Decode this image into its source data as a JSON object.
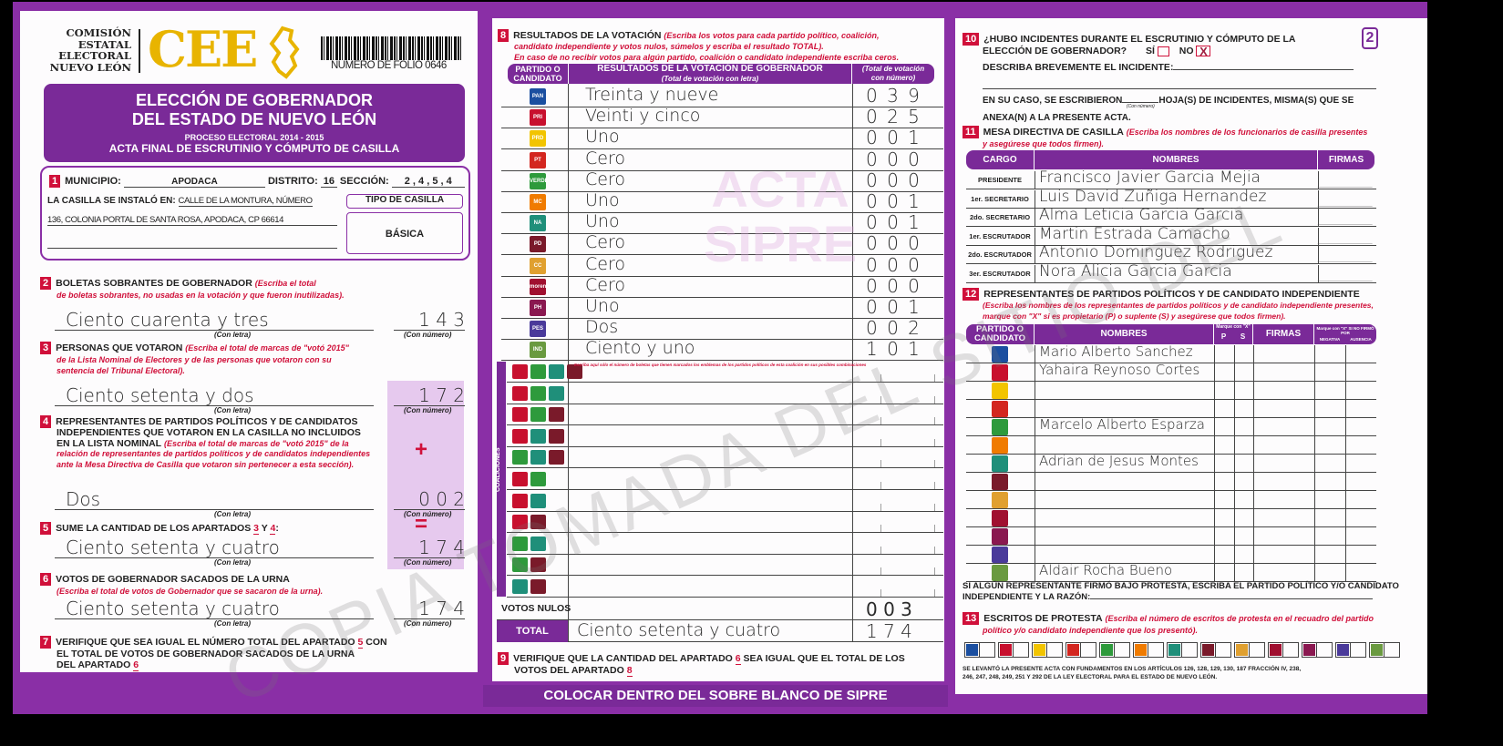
{
  "header": {
    "org_name": [
      "COMISIÓN",
      "ESTATAL",
      "ELECTORAL",
      "NUEVO LEÓN"
    ],
    "logo_text": "CEE",
    "folio": "NUMERO DE FOLIO 0646",
    "title1": "ELECCIÓN DE GOBERNADOR",
    "title2": "DEL ESTADO DE NUEVO LEÓN",
    "process": "PROCESO ELECTORAL 2014 - 2015",
    "subtitle": "ACTA FINAL DE ESCRUTINIO Y CÓMPUTO DE CASILLA",
    "page_badge": "2"
  },
  "colors": {
    "purple": "#7a2a98",
    "red": "#d0103a",
    "yellow": "#e8b400",
    "pink_column": "#e6c9ee"
  },
  "s1": {
    "num": "1",
    "municipio_label": "MUNICIPIO:",
    "municipio": "APODACA",
    "distrito_label": "DISTRITO:",
    "distrito": "16",
    "seccion_label": "SECCIÓN:",
    "seccion": "2 , 4 , 5 , 4",
    "casilla_label": "LA CASILLA SE INSTALÓ EN:",
    "address1": "CALLE DE LA MONTURA, NÚMERO",
    "address2": "136, COLONIA PORTAL DE SANTA ROSA, APODACA, CP 66614",
    "tipo_label": "TIPO DE CASILLA",
    "tipo": "BÁSICA"
  },
  "s2": {
    "num": "2",
    "title": "BOLETAS SOBRANTES DE GOBERNADOR",
    "note1": "(Escriba el total",
    "note2": "de boletas sobrantes, no usadas en la votación y que fueron inutilizadas).",
    "letra": "Ciento cuarenta y tres",
    "numero": "1 4 3"
  },
  "s3": {
    "num": "3",
    "title": "PERSONAS QUE VOTARON",
    "note1": "(Escriba el total de marcas de \"votó 2015\"",
    "note2": "de la Lista Nominal de Electores y de las personas que votaron con su",
    "note3": "sentencia del Tribunal Electoral).",
    "letra": "Ciento setenta y dos",
    "numero": "1 7 2"
  },
  "s4": {
    "num": "4",
    "title1": "REPRESENTANTES DE PARTIDOS POLÍTICOS Y DE CANDIDATOS",
    "title2": "INDEPENDIENTES QUE VOTARON EN LA CASILLA NO INCLUIDOS",
    "title3": "EN LA LISTA NOMINAL",
    "note1": "(Escriba el total de marcas de \"votó 2015\" de la",
    "note2": "relación de representantes de partidos políticos y de candidatos independientes",
    "note3": "ante la Mesa Directiva de Casilla que votaron sin pertenecer a esta sección).",
    "letra": "Dos",
    "numero": "0 0 2",
    "plus": "+"
  },
  "s5": {
    "num": "5",
    "title": "SUME LA CANTIDAD DE LOS APARTADOS",
    "a": "3",
    "y": "Y",
    "b": "4",
    "colon": ":",
    "letra": "Ciento setenta y cuatro",
    "numero": "1 7 4",
    "equals": "="
  },
  "s6": {
    "num": "6",
    "title": "VOTOS DE GOBERNADOR SACADOS DE LA URNA",
    "note": "(Escriba el total de votos de Gobernador que se sacaron de la urna).",
    "letra": "Ciento setenta y cuatro",
    "numero": "1 7 4"
  },
  "s7": {
    "num": "7",
    "line1": "VERIFIQUE QUE SEA IGUAL EL NÚMERO TOTAL DEL APARTADO",
    "ref1": "5",
    "line1b": "CON",
    "line2": "EL TOTAL DE VOTOS DE GOBERNADOR SACADOS DE LA URNA",
    "line3": "DEL APARTADO",
    "ref2": "6"
  },
  "con_letra": "(Con letra)",
  "con_numero": "(Con número)",
  "s8": {
    "num": "8",
    "title": "RESULTADOS DE LA VOTACIÓN",
    "note1": "(Escriba los votos para cada partido político, coalición,",
    "note2": "candidato independiente y votos nulos, súmelos y escriba el resultado TOTAL).",
    "note3": "En caso de no recibir votos para algún partido, coalición o candidato independiente escriba ceros.",
    "col1": "PARTIDO O CANDIDATO",
    "col2": "RESULTADOS DE LA VOTACIÓN DE GOBERNADOR",
    "col2sub": "(Total de votación con letra)",
    "col3": "(Total de votación con número)",
    "coalition_label": "COALICIONES",
    "coalition_note": "Escriba aquí sólo el número de boletas que tienen marcados los emblemas de los partidos políticos de esta coalición en sus posibles combinaciones",
    "rows": [
      {
        "party": "PAN",
        "icon": "pan-logo",
        "color": "#1b4fa0",
        "letra": "Treinta y nueve",
        "numero": "0 3 9"
      },
      {
        "party": "PRI",
        "icon": "pri-logo",
        "color": "#c8102e",
        "letra": "Veinti y cinco",
        "numero": "0 2 5"
      },
      {
        "party": "PRD",
        "icon": "prd-logo",
        "color": "#f2c400",
        "letra": "Uno",
        "numero": "0 0 1"
      },
      {
        "party": "PT",
        "icon": "pt-logo",
        "color": "#d3261f",
        "letra": "Cero",
        "numero": "0 0 0"
      },
      {
        "party": "VERDE",
        "icon": "verde-logo",
        "color": "#2e9a3c",
        "letra": "Cero",
        "numero": "0 0 0"
      },
      {
        "party": "MC",
        "icon": "movimiento-ciudadano-logo",
        "color": "#f07b00",
        "letra": "Uno",
        "numero": "0 0 1"
      },
      {
        "party": "NA",
        "icon": "nueva-alianza-logo",
        "color": "#1f8f7a",
        "letra": "Uno",
        "numero": "0 0 1"
      },
      {
        "party": "PD",
        "icon": "partido-demócrata-logo",
        "color": "#7a1a2a",
        "letra": "Cero",
        "numero": "0 0 0"
      },
      {
        "party": "CC",
        "icon": "cruzada-ciudadana-logo",
        "color": "#e0a030",
        "letra": "Cero",
        "numero": "0 0 0"
      },
      {
        "party": "morena",
        "icon": "morena-logo",
        "color": "#a01030",
        "letra": "Cero",
        "numero": "0 0 0"
      },
      {
        "party": "PH",
        "icon": "humanista-logo",
        "color": "#8a1850",
        "letra": "Uno",
        "numero": "0 0 1"
      },
      {
        "party": "PES",
        "icon": "encuentro-social-logo",
        "color": "#4a3a9a",
        "letra": "Dos",
        "numero": "0 0 2"
      },
      {
        "party": "IND",
        "icon": "independiente-logo",
        "color": "#6a9a40",
        "letra": "Ciento y uno",
        "numero": "1 0 1"
      }
    ],
    "coalitions": [
      [
        "PRI",
        "VERDE",
        "NA",
        "PD"
      ],
      [
        "PRI",
        "VERDE",
        "NA"
      ],
      [
        "PRI",
        "VERDE",
        "PD"
      ],
      [
        "PRI",
        "NA",
        "PD"
      ],
      [
        "VERDE",
        "NA",
        "PD"
      ],
      [
        "PRI",
        "VERDE"
      ],
      [
        "PRI",
        "NA"
      ],
      [
        "PRI",
        "PD"
      ],
      [
        "VERDE",
        "NA"
      ],
      [
        "VERDE",
        "PD"
      ],
      [
        "NA",
        "PD"
      ]
    ],
    "nulos_label": "VOTOS NULOS",
    "nulos_numero": "0 0 3",
    "total_label": "TOTAL",
    "total_letra": "Ciento setenta y cuatro",
    "total_numero": "1 7 4"
  },
  "s9": {
    "num": "9",
    "line1": "VERIFIQUE QUE LA CANTIDAD DEL APARTADO",
    "ref1": "6",
    "line1b": "SEA IGUAL QUE EL TOTAL DE LOS",
    "line2": "VOTOS DEL APARTADO",
    "ref2": "8"
  },
  "banner": "COLOCAR DENTRO DEL SOBRE BLANCO DE SIPRE",
  "s10": {
    "num": "10",
    "q1": "¿HUBO INCIDENTES DURANTE EL ESCRUTINIO Y CÓMPUTO DE LA",
    "q2": "ELECCIÓN DE GOBERNADOR?",
    "si": "SÍ",
    "no": "NO",
    "mark": "X",
    "describe": "DESCRIBA BREVEMENTE EL INCIDENTE:",
    "case1": "EN SU CASO, SE ESCRIBIERON",
    "case1b": "HOJA(S) DE INCIDENTES, MISMA(S) QUE SE",
    "case_sub": "(Con número)",
    "case2": "ANEXA(N) A LA PRESENTE ACTA."
  },
  "s11": {
    "num": "11",
    "title": "MESA DIRECTIVA DE CASILLA",
    "note1": "(Escriba los nombres de los funcionarios de casilla presentes",
    "note2": "y asegúrese que todos firmen).",
    "col1": "CARGO",
    "col2": "NOMBRES",
    "col3": "FIRMAS",
    "rows": [
      {
        "cargo": "PRESIDENTE",
        "nombre": "Francisco Javier Garcia Mejia"
      },
      {
        "cargo": "1er. SECRETARIO",
        "nombre": "Luis David Zuñiga Hernandez"
      },
      {
        "cargo": "2do. SECRETARIO",
        "nombre": "Alma Leticia Garcia Garcia"
      },
      {
        "cargo": "1er. ESCRUTADOR",
        "nombre": "Martin Estrada Camacho"
      },
      {
        "cargo": "2do. ESCRUTADOR",
        "nombre": "Antonio Dominguez Rodriguez"
      },
      {
        "cargo": "3er. ESCRUTADOR",
        "nombre": "Nora Alicia Garcia Garcia"
      }
    ]
  },
  "s12": {
    "num": "12",
    "title": "REPRESENTANTES DE PARTIDOS POLÍTICOS Y DE CANDIDATO INDEPENDIENTE",
    "note1": "(Escriba los nombres de los representantes de partidos políticos y de candidato independiente presentes,",
    "note2": "marque con \"X\" si es propietario (P) o suplente (S) y asegúrese que todos firmen).",
    "col1": "PARTIDO O CANDIDATO",
    "col2": "NOMBRES",
    "col_mark": "Marque con \"X\"",
    "p": "P",
    "s": "S",
    "col3": "FIRMAS",
    "col4": "Marque con \"X\" SI NO FIRMÓ POR",
    "col4a": "NEGATIVA",
    "col4b": "AUSENCIA",
    "rows": [
      {
        "icon": "pan-logo",
        "nombre": "Mario Alberto Sanchez"
      },
      {
        "icon": "pri-logo",
        "nombre": "Yahaira Reynoso Cortes"
      },
      {
        "icon": "prd-logo",
        "nombre": ""
      },
      {
        "icon": "pt-logo",
        "nombre": ""
      },
      {
        "icon": "verde-logo",
        "nombre": "Marcelo Alberto Esparza"
      },
      {
        "icon": "movimiento-ciudadano-logo",
        "nombre": ""
      },
      {
        "icon": "nueva-alianza-logo",
        "nombre": "Adrian de Jesus Montes"
      },
      {
        "icon": "partido-demócrata-logo",
        "nombre": ""
      },
      {
        "icon": "cruzada-ciudadana-logo",
        "nombre": ""
      },
      {
        "icon": "morena-logo",
        "nombre": ""
      },
      {
        "icon": "humanista-logo",
        "nombre": ""
      },
      {
        "icon": "encuentro-social-logo",
        "nombre": ""
      },
      {
        "icon": "independiente-logo",
        "nombre": "Aldair Rocha Bueno"
      }
    ],
    "protest1": "SI ALGÚN REPRESENTANTE FIRMÓ BAJO PROTESTA, ESCRIBA EL PARTIDO POLÍTICO Y/O CANDIDATO",
    "protest2": "INDEPENDIENTE Y LA RAZÓN:"
  },
  "s13": {
    "num": "13",
    "title": "ESCRITOS DE PROTESTA",
    "note1": "(Escriba el número de escritos de protesta en el recuadro del partido",
    "note2": "político y/o candidato independiente que los presentó)."
  },
  "footer1": "SE LEVANTÓ LA PRESENTE ACTA CON FUNDAMENTOS EN LOS ARTÍCULOS 126, 128, 129, 130, 187 FRACCIÓN IV, 238,",
  "footer2": "246, 247, 248, 249, 251 Y 292 DE LA LEY ELECTORAL PARA EL ESTADO DE NUEVO LEÓN.",
  "watermark": "COPIA TOMADA DEL SITIO DEL",
  "watermark2": [
    "ACTA",
    "SIPRE"
  ]
}
